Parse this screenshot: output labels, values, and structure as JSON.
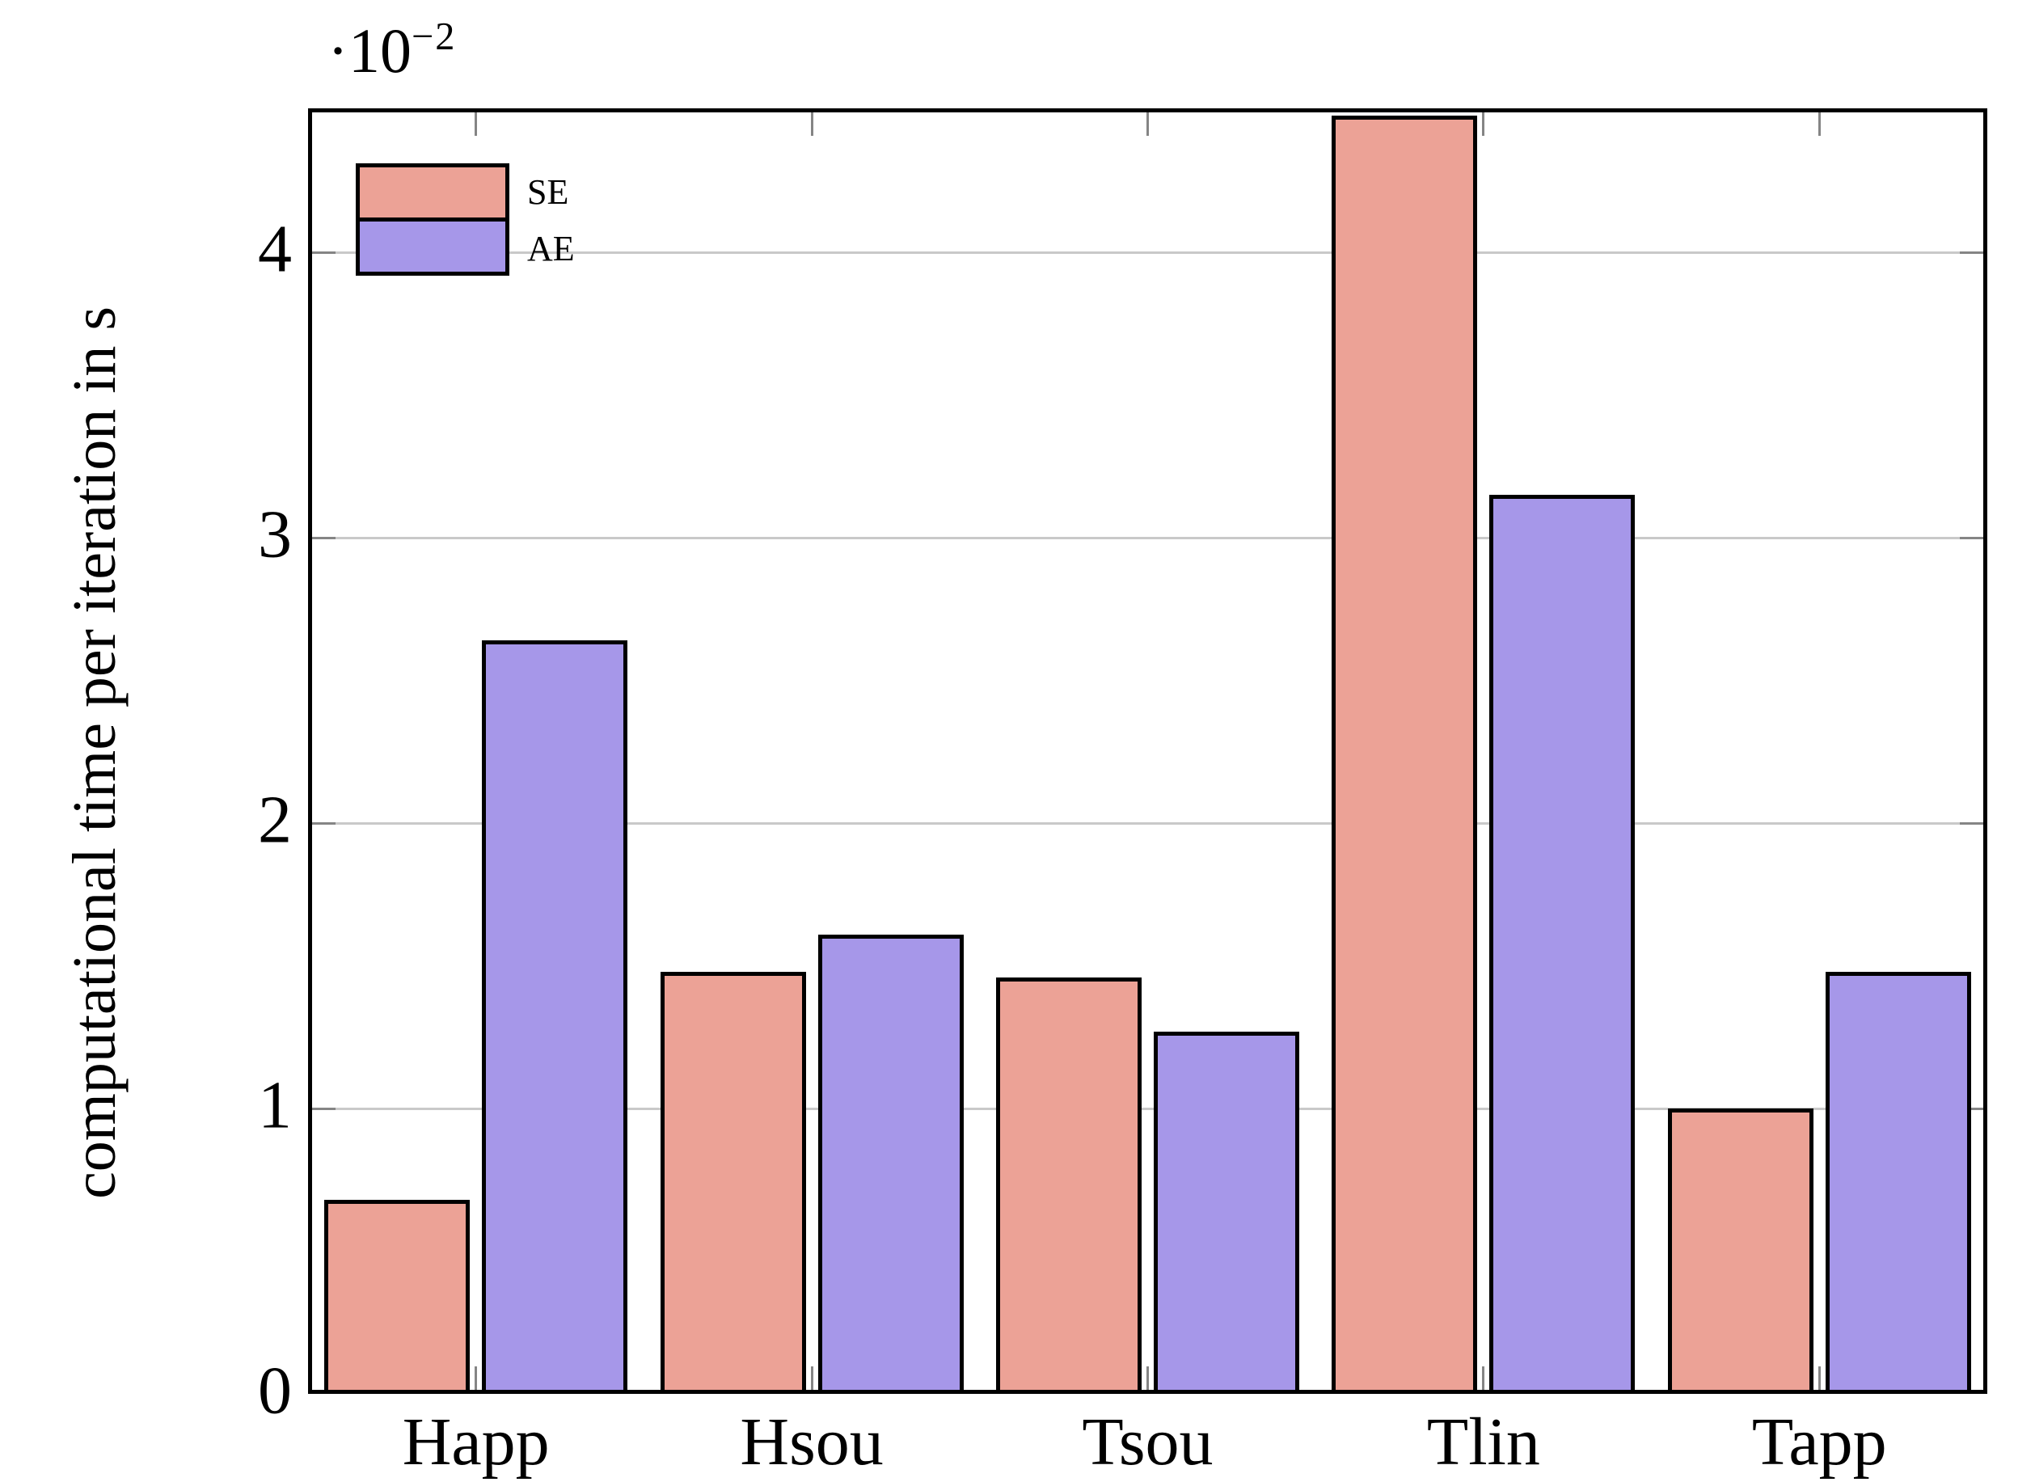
{
  "chart_data": {
    "type": "bar",
    "title": "",
    "ylabel": "computational time per iteration in s",
    "xlabel": "",
    "y_axis_multiplier": {
      "prefix": "·10",
      "exponent": "−2"
    },
    "categories": [
      "Happ",
      "Hsou",
      "Tsou",
      "Tlin",
      "Tapp"
    ],
    "series": [
      {
        "name": "SE",
        "color": "#eca296",
        "values": [
          0.68,
          1.48,
          1.46,
          4.48,
          1.0
        ]
      },
      {
        "name": "AE",
        "color": "#a697e9",
        "values": [
          2.64,
          1.61,
          1.27,
          3.15,
          1.48
        ]
      }
    ],
    "ylim": [
      0,
      4.5
    ],
    "yticks": [
      0,
      1,
      2,
      3,
      4
    ],
    "grid": "horizontal",
    "legend_position": "top-left",
    "colors": {
      "grid": "#c9c9c9",
      "tick": "#858585",
      "frame": "#000000",
      "background": "#ffffff"
    }
  }
}
